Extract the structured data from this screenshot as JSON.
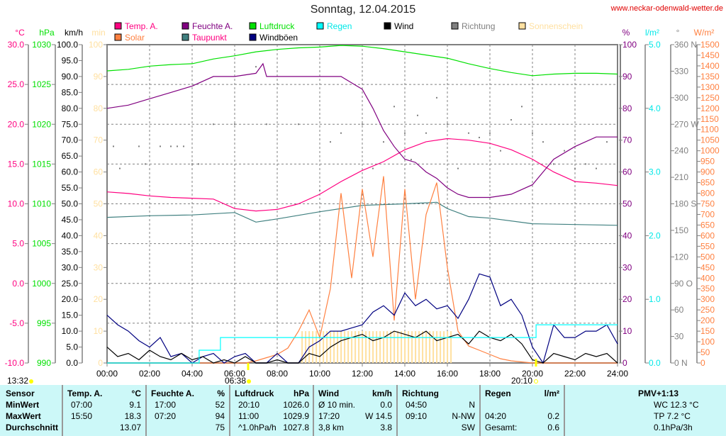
{
  "header": {
    "title": "Sonntag, 12.04.2015",
    "url": "www.neckar-odenwald-wetter.de"
  },
  "chart_data": {
    "type": "line",
    "title": "Sonntag, 12.04.2015",
    "x_range": [
      0,
      24
    ],
    "x_ticks": [
      "00:00",
      "02:00",
      "04:00",
      "06:00",
      "08:00",
      "10:00",
      "12:00",
      "14:00",
      "16:00",
      "18:00",
      "20:00",
      "22:00",
      "24:00"
    ],
    "grid": true,
    "axes": {
      "temp": {
        "unit": "°C",
        "min": -10,
        "max": 30,
        "step": 5,
        "color": "#ff0080",
        "dec": 1
      },
      "pressure": {
        "unit": "hPa",
        "min": 990,
        "max": 1030,
        "step": 5,
        "color": "#00e000",
        "dec": 0
      },
      "wind": {
        "unit": "km/h",
        "min": 0,
        "max": 100,
        "step": 5,
        "color": "#000000",
        "dec": 1
      },
      "sun": {
        "unit": "min",
        "min": 0,
        "max": 100,
        "step": 10,
        "color": "#ffe0a0",
        "dec": 0
      },
      "humidity": {
        "unit": "%",
        "min": 0,
        "max": 100,
        "step": 10,
        "color": "#800080",
        "dec": 0
      },
      "rain": {
        "unit": "l/m²",
        "min": 0,
        "max": 5,
        "step": 1,
        "color": "#00e8e8",
        "dec": 1
      },
      "direction": {
        "unit": "°",
        "min": 0,
        "max": 360,
        "step": 30,
        "color": "#808080",
        "dec": 0,
        "compass": {
          "0": "N",
          "90": "O",
          "180": "S",
          "270": "W",
          "360": "N"
        }
      },
      "solar": {
        "unit": "W/m²",
        "min": 0,
        "max": 1500,
        "step": 50,
        "color": "#ff8040",
        "dec": 0
      }
    },
    "legend": [
      {
        "label": "Temp. A.",
        "color": "#ff0080",
        "text_color": "#ff0080"
      },
      {
        "label": "Feuchte A.",
        "color": "#800080",
        "text_color": "#800080"
      },
      {
        "label": "Luftdruck",
        "color": "#00e000",
        "text_color": "#00e000"
      },
      {
        "label": "Regen",
        "color": "#00ffff",
        "text_color": "#00e8e8"
      },
      {
        "label": "Wind",
        "color": "#000000",
        "text_color": "#000000"
      },
      {
        "label": "Richtung",
        "color": "#808080",
        "text_color": "#808080"
      },
      {
        "label": "Sonnenschein",
        "color": "#ffe0a0",
        "text_color": "#ffe0a0"
      },
      {
        "label": "Solar",
        "color": "#ff8040",
        "text_color": "#ff8040"
      },
      {
        "label": "Taupunkt",
        "color": "#408080",
        "text_color": "#ff0080"
      },
      {
        "label": "Windböen",
        "color": "#000080",
        "text_color": "#000000"
      }
    ],
    "series": [
      {
        "name": "Luftdruck",
        "axis": "pressure",
        "color": "#00e000",
        "x": [
          0,
          1,
          2,
          3,
          4,
          5,
          6,
          7,
          8,
          9,
          10,
          11,
          12,
          13,
          14,
          15,
          16,
          17,
          18,
          19,
          20,
          21,
          22,
          23,
          24
        ],
        "y": [
          1026.7,
          1026.9,
          1027.3,
          1027.5,
          1027.6,
          1028.2,
          1028.6,
          1029.1,
          1029.4,
          1029.6,
          1029.7,
          1029.9,
          1029.8,
          1029.5,
          1029.1,
          1028.7,
          1028.3,
          1027.6,
          1027.0,
          1026.5,
          1026.1,
          1026.3,
          1026.4,
          1026.4,
          1026.3
        ]
      },
      {
        "name": "Temp. A.",
        "axis": "temp",
        "color": "#ff0080",
        "x": [
          0,
          1,
          2,
          3,
          4,
          5,
          6,
          7,
          8,
          9,
          10,
          11,
          12,
          13,
          14,
          15,
          16,
          17,
          18,
          19,
          20,
          21,
          22,
          23,
          24
        ],
        "y": [
          11.5,
          11.3,
          11.0,
          10.8,
          10.7,
          10.6,
          9.4,
          9.1,
          9.3,
          10.0,
          11.2,
          12.8,
          14.2,
          15.3,
          16.8,
          17.8,
          18.2,
          18.0,
          17.6,
          16.8,
          15.6,
          14.0,
          12.8,
          12.6,
          12.3
        ]
      },
      {
        "name": "Taupunkt",
        "axis": "temp",
        "color": "#408080",
        "x": [
          0,
          2,
          4,
          6,
          7,
          8,
          10,
          12,
          14,
          15.5,
          16,
          17,
          18,
          20,
          22,
          24
        ],
        "y": [
          8.3,
          8.5,
          8.6,
          8.9,
          7.7,
          8.1,
          9.0,
          9.8,
          10.0,
          10.2,
          9.4,
          8.4,
          8.2,
          7.5,
          7.4,
          7.3
        ]
      },
      {
        "name": "Feuchte A.",
        "axis": "humidity",
        "color": "#800080",
        "x": [
          0,
          1,
          2,
          3,
          4,
          5,
          6,
          7,
          7.33,
          7.5,
          8,
          9,
          10,
          11,
          11.5,
          12,
          12.5,
          13,
          13.5,
          14,
          14.5,
          15,
          15.5,
          16,
          16.5,
          17,
          18,
          19,
          20,
          20.5,
          21,
          22,
          23,
          24
        ],
        "y": [
          80,
          81,
          83,
          85,
          87,
          90,
          90,
          91,
          94,
          90,
          90,
          90,
          90,
          90,
          88,
          86,
          80,
          73,
          68,
          64,
          63,
          60,
          58,
          55,
          53,
          52,
          52,
          53,
          56,
          60,
          64,
          68,
          71,
          71
        ]
      },
      {
        "name": "Solar",
        "axis": "solar",
        "color": "#ff8040",
        "x": [
          0,
          6.5,
          7,
          7.5,
          8,
          8.5,
          9,
          9.5,
          10,
          10.5,
          11,
          11.5,
          12,
          12.5,
          13,
          13.5,
          14,
          14.5,
          15,
          15.5,
          16,
          16.5,
          17,
          17.5,
          18,
          18.5,
          19,
          19.5,
          20,
          24
        ],
        "y": [
          0,
          0,
          10,
          25,
          40,
          70,
          150,
          250,
          120,
          350,
          800,
          400,
          820,
          500,
          880,
          200,
          820,
          300,
          700,
          850,
          450,
          150,
          80,
          60,
          40,
          20,
          10,
          5,
          0,
          0
        ]
      },
      {
        "name": "Windböen",
        "axis": "wind",
        "color": "#000080",
        "x": [
          0,
          0.5,
          1,
          1.5,
          2,
          2.5,
          3,
          3.5,
          4,
          4.5,
          5,
          5.5,
          6,
          6.5,
          7,
          7.5,
          8,
          8.5,
          9,
          9.5,
          10,
          10.5,
          11,
          11.5,
          12,
          12.5,
          13,
          13.5,
          14,
          14.5,
          15,
          15.5,
          16,
          16.5,
          17,
          17.5,
          18,
          18.5,
          19,
          19.5,
          20,
          20.5,
          21,
          21.5,
          22,
          22.5,
          23,
          23.5,
          24
        ],
        "y": [
          15,
          12,
          10,
          7,
          5,
          8,
          2,
          3,
          0,
          2,
          3,
          0,
          2,
          3,
          0,
          0,
          3,
          0,
          0,
          5,
          7,
          10,
          10,
          11,
          12,
          16,
          18,
          15,
          22,
          18,
          20,
          17,
          18,
          14,
          20,
          28,
          27,
          18,
          20,
          15,
          5,
          0,
          12,
          8,
          8,
          10,
          10,
          12,
          6
        ]
      },
      {
        "name": "Wind",
        "axis": "wind",
        "color": "#000000",
        "x": [
          0,
          0.5,
          1,
          1.5,
          2,
          2.5,
          3,
          3.5,
          4,
          4.5,
          5,
          5.5,
          6,
          6.5,
          7,
          7.5,
          8,
          8.5,
          9,
          9.5,
          10,
          10.5,
          11,
          11.5,
          12,
          12.5,
          13,
          13.5,
          14,
          14.5,
          15,
          15.5,
          16,
          16.5,
          17,
          17.5,
          18,
          18.5,
          19,
          19.5,
          20,
          20.5,
          21,
          21.5,
          22,
          22.5,
          23,
          23.5,
          24
        ],
        "y": [
          5,
          2,
          3,
          1,
          4,
          2,
          1,
          3,
          1,
          2,
          0,
          1,
          0,
          2,
          0,
          0,
          1,
          0,
          0,
          3,
          2,
          5,
          7,
          8,
          9,
          7,
          8,
          10,
          9,
          8,
          10,
          7,
          8,
          9,
          6,
          10,
          8,
          7,
          9,
          6,
          1,
          0,
          3,
          2,
          1,
          3,
          2,
          3,
          0
        ]
      },
      {
        "name": "Regen",
        "axis": "rain",
        "color": "#00ffff",
        "step": true,
        "x": [
          0,
          4.33,
          5.33,
          20.17,
          24
        ],
        "y": [
          0,
          0.2,
          0.4,
          0.6,
          0.6
        ]
      }
    ],
    "sunshine": {
      "axis": "sun",
      "color": "#ffe0a0",
      "start": 9.17,
      "end": 16.33,
      "interval_min": 10,
      "value": 10
    },
    "direction_points": {
      "axis": "direction",
      "color": "#808080",
      "x": [
        0.3,
        0.6,
        1.5,
        1.8,
        2.5,
        3,
        3.3,
        3.6,
        4,
        4.3,
        5,
        6,
        7,
        7.5,
        9,
        10,
        10.5,
        11,
        12,
        12.5,
        13,
        13.5,
        14,
        14.3,
        14.6,
        15,
        15.5,
        16,
        16.5,
        17,
        17.5,
        18,
        18.5,
        19,
        19.5,
        20,
        20.5,
        21,
        21.5,
        22,
        22.5,
        23,
        23.5
      ],
      "y": [
        245,
        220,
        245,
        225,
        245,
        245,
        245,
        245,
        225,
        225,
        270,
        270,
        335,
        270,
        270,
        195,
        250,
        260,
        270,
        220,
        250,
        290,
        260,
        230,
        280,
        260,
        300,
        270,
        220,
        260,
        255,
        260,
        240,
        275,
        290,
        260,
        250,
        225,
        240,
        220,
        225,
        220,
        250
      ]
    },
    "markers": {
      "day_length": "13:32",
      "sunrise": "06:38",
      "sunset": "20:10"
    }
  },
  "table": {
    "headers": {
      "sensor": "Sensor",
      "temp": "Temp. A.",
      "temp_unit": "°C",
      "hum": "Feuchte A.",
      "hum_unit": "%",
      "press": "Luftdruck",
      "press_unit": "hPa",
      "wind": "Wind",
      "wind_unit": "km/h",
      "dir": "Richtung",
      "rain": "Regen",
      "rain_unit": "l/m²",
      "pmv": "PMV+1:13"
    },
    "rows": [
      {
        "label": "MinWert",
        "temp_t": "07:00",
        "temp_v": "9.1",
        "hum_t": "17:00",
        "hum_v": "52",
        "press_t": "20:10",
        "press_v": "1026.0",
        "wind_t": "Ø 10 min.",
        "wind_v": "0.0",
        "dir_t": "04:50",
        "dir_v": "N",
        "rain_t": "",
        "rain_v": "",
        "extra": "WC 12.3 °C"
      },
      {
        "label": "MaxWert",
        "temp_t": "15:50",
        "temp_v": "18.3",
        "hum_t": "07:20",
        "hum_v": "94",
        "press_t": "11:00",
        "press_v": "1029.9",
        "wind_t": "17:20",
        "wind_v": "W 14.5",
        "dir_t": "09:10",
        "dir_v": "N-NW",
        "rain_t": "04:20",
        "rain_v": "0.2",
        "extra": "TP 7.2 °C"
      },
      {
        "label": "Durchschnitt",
        "temp_t": "",
        "temp_v": "13.07",
        "hum_t": "",
        "hum_v": "75",
        "press_t": "^1.0hPa/h",
        "press_v": "1027.8",
        "wind_t": "3,8 km",
        "wind_v": "3.8",
        "dir_t": "",
        "dir_v": "SW",
        "rain_t": "Gesamt:",
        "rain_v": "0.6",
        "extra": "0.1hPa/3h"
      }
    ]
  }
}
